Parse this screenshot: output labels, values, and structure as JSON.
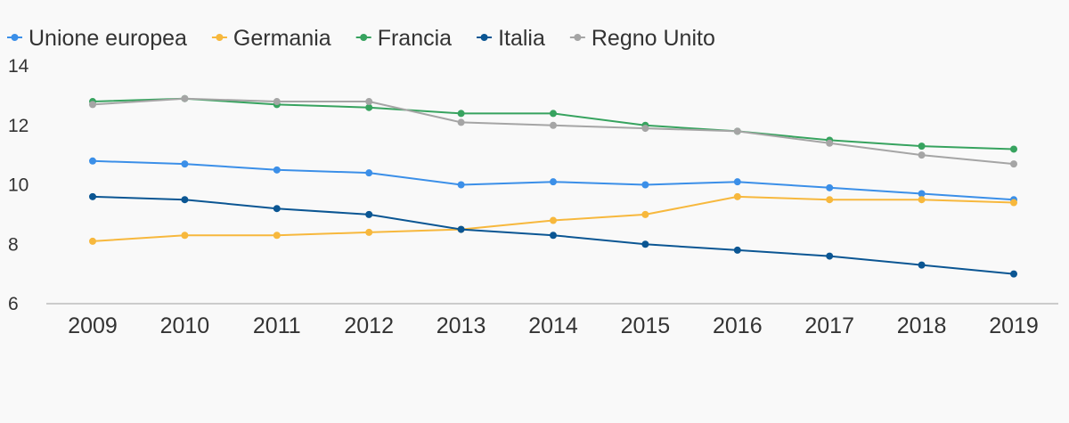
{
  "chart_data": {
    "type": "line",
    "title": "",
    "xlabel": "",
    "ylabel": "",
    "categories": [
      "2009",
      "2010",
      "2011",
      "2012",
      "2013",
      "2014",
      "2015",
      "2016",
      "2017",
      "2018",
      "2019"
    ],
    "ylim": [
      6,
      14
    ],
    "yticks": [
      "6",
      "8",
      "10",
      "12",
      "14"
    ],
    "grid": false,
    "legend_position": "top-left",
    "series": [
      {
        "name": "Unione europea",
        "color": "#3b8fe8",
        "values": [
          10.8,
          10.7,
          10.5,
          10.4,
          10.0,
          10.1,
          10.0,
          10.1,
          9.9,
          9.7,
          9.5
        ]
      },
      {
        "name": "Germania",
        "color": "#f7b83d",
        "values": [
          8.1,
          8.3,
          8.3,
          8.4,
          8.5,
          8.8,
          9.0,
          9.6,
          9.5,
          9.5,
          9.4
        ]
      },
      {
        "name": "Francia",
        "color": "#37a35f",
        "values": [
          12.8,
          12.9,
          12.7,
          12.6,
          12.4,
          12.4,
          12.0,
          11.8,
          11.5,
          11.3,
          11.2
        ]
      },
      {
        "name": "Italia",
        "color": "#0b5693",
        "values": [
          9.6,
          9.5,
          9.2,
          9.0,
          8.5,
          8.3,
          8.0,
          7.8,
          7.6,
          7.3,
          7.0
        ]
      },
      {
        "name": "Regno Unito",
        "color": "#a5a5a5",
        "values": [
          12.7,
          12.9,
          12.8,
          12.8,
          12.1,
          12.0,
          11.9,
          11.8,
          11.4,
          11.0,
          10.7
        ]
      }
    ]
  }
}
